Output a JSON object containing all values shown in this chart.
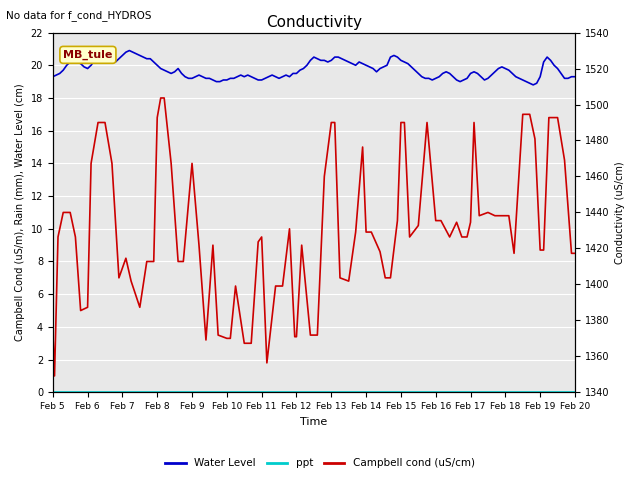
{
  "title": "Conductivity",
  "top_left_text": "No data for f_cond_HYDROS",
  "xlabel": "Time",
  "ylabel_left": "Campbell Cond (uS/m), Rain (mm), Water Level (cm)",
  "ylabel_right": "Conductivity (uS/cm)",
  "annotation_box": "MB_tule",
  "xlim": [
    0,
    15
  ],
  "ylim_left": [
    0,
    22
  ],
  "ylim_right": [
    1340,
    1540
  ],
  "xtick_labels": [
    "Feb 5",
    "Feb 6",
    "Feb 7",
    "Feb 8",
    "Feb 9",
    "Feb 10",
    "Feb 11",
    "Feb 12",
    "Feb 13",
    "Feb 14",
    "Feb 15",
    "Feb 16",
    "Feb 17",
    "Feb 18",
    "Feb 19",
    "Feb 20"
  ],
  "ytick_left": [
    0,
    2,
    4,
    6,
    8,
    10,
    12,
    14,
    16,
    18,
    20,
    22
  ],
  "ytick_right": [
    1340,
    1360,
    1380,
    1400,
    1420,
    1440,
    1460,
    1480,
    1500,
    1520,
    1540
  ],
  "water_level_color": "#0000cc",
  "ppt_color": "#00cccc",
  "campbell_color": "#cc0000",
  "background_color": "#e8e8e8",
  "legend_entries": [
    "Water Level",
    "ppt",
    "Campbell cond (uS/cm)"
  ],
  "water_level_x": [
    0.0,
    0.1,
    0.2,
    0.3,
    0.4,
    0.5,
    0.6,
    0.7,
    0.8,
    0.9,
    1.0,
    1.1,
    1.2,
    1.3,
    1.4,
    1.5,
    1.6,
    1.7,
    1.8,
    1.9,
    2.0,
    2.1,
    2.2,
    2.3,
    2.4,
    2.5,
    2.6,
    2.7,
    2.8,
    2.9,
    3.0,
    3.1,
    3.2,
    3.3,
    3.4,
    3.5,
    3.6,
    3.7,
    3.8,
    3.9,
    4.0,
    4.1,
    4.2,
    4.3,
    4.4,
    4.5,
    4.6,
    4.7,
    4.8,
    4.9,
    5.0,
    5.1,
    5.2,
    5.3,
    5.4,
    5.5,
    5.6,
    5.7,
    5.8,
    5.9,
    6.0,
    6.1,
    6.2,
    6.3,
    6.4,
    6.5,
    6.6,
    6.7,
    6.8,
    6.9,
    7.0,
    7.1,
    7.2,
    7.3,
    7.4,
    7.5,
    7.6,
    7.7,
    7.8,
    7.9,
    8.0,
    8.1,
    8.2,
    8.3,
    8.4,
    8.5,
    8.6,
    8.7,
    8.8,
    8.9,
    9.0,
    9.1,
    9.2,
    9.3,
    9.4,
    9.5,
    9.6,
    9.7,
    9.8,
    9.9,
    10.0,
    10.1,
    10.2,
    10.3,
    10.4,
    10.5,
    10.6,
    10.7,
    10.8,
    10.9,
    11.0,
    11.1,
    11.2,
    11.3,
    11.4,
    11.5,
    11.6,
    11.7,
    11.8,
    11.9,
    12.0,
    12.1,
    12.2,
    12.3,
    12.4,
    12.5,
    12.6,
    12.7,
    12.8,
    12.9,
    13.0,
    13.1,
    13.2,
    13.3,
    13.4,
    13.5,
    13.6,
    13.7,
    13.8,
    13.9,
    14.0,
    14.1,
    14.2,
    14.3,
    14.4,
    14.5,
    14.6,
    14.7,
    14.8,
    14.9,
    15.0
  ],
  "water_level_y": [
    19.3,
    19.4,
    19.5,
    19.7,
    20.0,
    20.2,
    20.3,
    20.2,
    20.1,
    19.9,
    19.8,
    20.0,
    20.3,
    20.4,
    20.5,
    20.4,
    20.3,
    20.3,
    20.2,
    20.4,
    20.6,
    20.8,
    20.9,
    20.8,
    20.7,
    20.6,
    20.5,
    20.4,
    20.4,
    20.2,
    20.0,
    19.8,
    19.7,
    19.6,
    19.5,
    19.6,
    19.8,
    19.5,
    19.3,
    19.2,
    19.2,
    19.3,
    19.4,
    19.3,
    19.2,
    19.2,
    19.1,
    19.0,
    19.0,
    19.1,
    19.1,
    19.2,
    19.2,
    19.3,
    19.4,
    19.3,
    19.4,
    19.3,
    19.2,
    19.1,
    19.1,
    19.2,
    19.3,
    19.4,
    19.3,
    19.2,
    19.3,
    19.4,
    19.3,
    19.5,
    19.5,
    19.7,
    19.8,
    20.0,
    20.3,
    20.5,
    20.4,
    20.3,
    20.3,
    20.2,
    20.3,
    20.5,
    20.5,
    20.4,
    20.3,
    20.2,
    20.1,
    20.0,
    20.2,
    20.1,
    20.0,
    19.9,
    19.8,
    19.6,
    19.8,
    19.9,
    20.0,
    20.5,
    20.6,
    20.5,
    20.3,
    20.2,
    20.1,
    19.9,
    19.7,
    19.5,
    19.3,
    19.2,
    19.2,
    19.1,
    19.2,
    19.3,
    19.5,
    19.6,
    19.5,
    19.3,
    19.1,
    19.0,
    19.1,
    19.2,
    19.5,
    19.6,
    19.5,
    19.3,
    19.1,
    19.2,
    19.4,
    19.6,
    19.8,
    19.9,
    19.8,
    19.7,
    19.5,
    19.3,
    19.2,
    19.1,
    19.0,
    18.9,
    18.8,
    18.9,
    19.3,
    20.2,
    20.5,
    20.3,
    20.0,
    19.8,
    19.5,
    19.2,
    19.2,
    19.3,
    19.3
  ],
  "campbell_x": [
    0.0,
    0.05,
    0.15,
    0.3,
    0.5,
    0.65,
    0.8,
    1.0,
    1.1,
    1.3,
    1.5,
    1.7,
    1.9,
    2.1,
    2.25,
    2.5,
    2.7,
    2.9,
    3.0,
    3.1,
    3.2,
    3.4,
    3.6,
    3.75,
    4.0,
    4.2,
    4.4,
    4.6,
    4.75,
    5.0,
    5.1,
    5.25,
    5.5,
    5.7,
    5.9,
    6.0,
    6.15,
    6.4,
    6.6,
    6.8,
    6.95,
    7.0,
    7.15,
    7.4,
    7.6,
    7.8,
    8.0,
    8.1,
    8.25,
    8.5,
    8.7,
    8.9,
    9.0,
    9.15,
    9.4,
    9.55,
    9.7,
    9.9,
    10.0,
    10.1,
    10.25,
    10.5,
    10.75,
    11.0,
    11.15,
    11.4,
    11.6,
    11.75,
    11.9,
    12.0,
    12.1,
    12.25,
    12.5,
    12.7,
    13.0,
    13.1,
    13.25,
    13.5,
    13.7,
    13.85,
    14.0,
    14.1,
    14.25,
    14.5,
    14.7,
    14.9,
    15.0
  ],
  "campbell_y": [
    3.8,
    1.0,
    9.5,
    11.0,
    11.0,
    9.5,
    5.0,
    5.2,
    14.0,
    16.5,
    16.5,
    14.0,
    7.0,
    8.2,
    6.8,
    5.2,
    8.0,
    8.0,
    16.8,
    18.0,
    18.0,
    14.0,
    8.0,
    8.0,
    14.0,
    9.0,
    3.2,
    9.0,
    3.5,
    3.3,
    3.3,
    6.5,
    3.0,
    3.0,
    9.2,
    9.5,
    1.8,
    6.5,
    6.5,
    10.0,
    3.4,
    3.4,
    9.0,
    3.5,
    3.5,
    13.2,
    16.5,
    16.5,
    7.0,
    6.8,
    9.8,
    15.0,
    9.8,
    9.8,
    8.6,
    7.0,
    7.0,
    10.5,
    16.5,
    16.5,
    9.5,
    10.2,
    16.5,
    10.5,
    10.5,
    9.5,
    10.4,
    9.5,
    9.5,
    10.4,
    16.5,
    10.8,
    11.0,
    10.8,
    10.8,
    10.8,
    8.5,
    17.0,
    17.0,
    15.5,
    8.7,
    8.7,
    16.8,
    16.8,
    14.2,
    8.5,
    8.5
  ],
  "ppt_y": 0
}
